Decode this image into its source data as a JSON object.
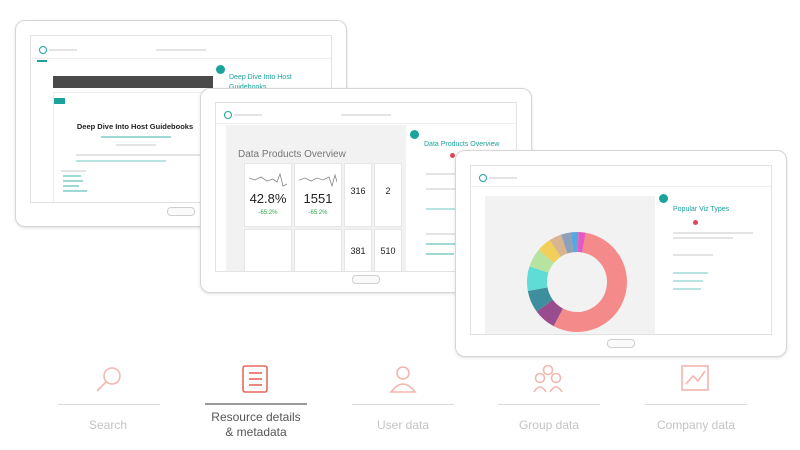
{
  "tablets": [
    {
      "doc_title": "Deep Dive Into Host Guidebooks",
      "sidebar_title": "Deep Dive Into Host Guidebooks"
    },
    {
      "sidebar_title": "Data Products Overview",
      "dashboard_title": "Data Products Overview",
      "tiles": [
        {
          "value": "42.8%",
          "change": "-65.2%"
        },
        {
          "value": "1551",
          "change": "-65.2%"
        },
        {
          "value": "316"
        },
        {
          "value": "2"
        },
        {
          "value": "381"
        },
        {
          "value": "510"
        }
      ]
    },
    {
      "sidebar_title": "Popular Viz Types"
    }
  ],
  "nav": [
    "Search",
    "Resource details\n& metadata",
    "User data",
    "Group data",
    "Company data"
  ]
}
